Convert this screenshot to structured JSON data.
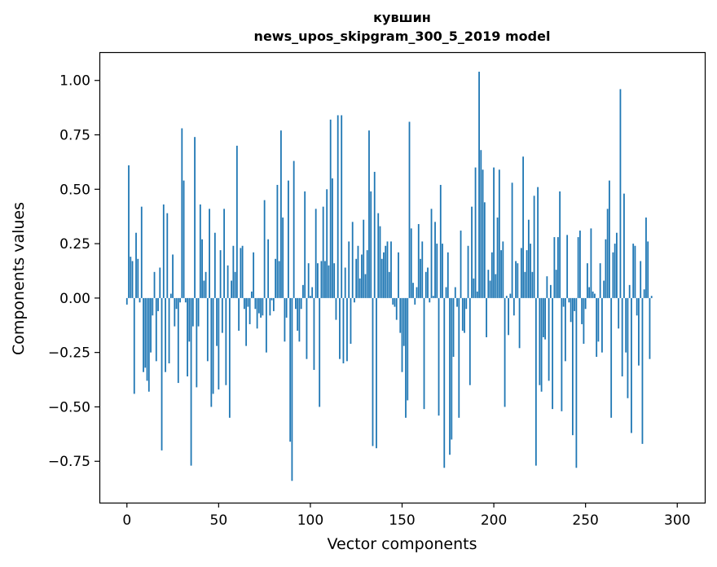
{
  "chart_data": {
    "type": "bar",
    "title_lines": [
      "кувшин",
      "news_upos_skipgram_300_5_2019 model"
    ],
    "xlabel": "Vector components",
    "ylabel": "Components values",
    "xlim": [
      -15,
      315
    ],
    "ylim": [
      -0.94,
      1.13
    ],
    "xticks": [
      0,
      50,
      100,
      150,
      200,
      250,
      300
    ],
    "yticks": [
      -0.75,
      -0.5,
      -0.25,
      0.0,
      0.25,
      0.5,
      0.75,
      1.0
    ],
    "ytick_labels": [
      "−0.75",
      "−0.50",
      "−0.25",
      "0.00",
      "0.25",
      "0.50",
      "0.75",
      "1.00"
    ],
    "bar_color": "#1f77b4",
    "grid": false,
    "series": [
      {
        "values": [
          -0.03,
          0.61,
          0.19,
          0.17,
          -0.44,
          0.3,
          0.18,
          -0.02,
          0.42,
          -0.34,
          -0.32,
          -0.38,
          -0.43,
          -0.25,
          -0.08,
          0.12,
          -0.29,
          -0.06,
          0.14,
          -0.7,
          0.43,
          -0.34,
          0.39,
          -0.3,
          0.02,
          0.2,
          -0.13,
          -0.05,
          -0.39,
          -0.02,
          0.78,
          0.54,
          -0.02,
          -0.36,
          -0.2,
          -0.77,
          -0.13,
          0.74,
          -0.41,
          -0.13,
          0.43,
          0.27,
          0.08,
          0.12,
          -0.29,
          0.41,
          -0.5,
          -0.44,
          0.3,
          -0.22,
          -0.42,
          0.22,
          -0.16,
          0.41,
          -0.4,
          0.15,
          -0.55,
          0.08,
          0.24,
          0.12,
          0.7,
          -0.15,
          0.23,
          0.24,
          -0.05,
          -0.22,
          -0.04,
          -0.12,
          0.03,
          0.21,
          -0.05,
          -0.14,
          -0.07,
          -0.09,
          -0.08,
          0.45,
          -0.25,
          0.27,
          -0.08,
          -0.01,
          -0.06,
          0.18,
          0.52,
          0.17,
          0.77,
          0.37,
          -0.2,
          -0.09,
          0.54,
          -0.66,
          -0.84,
          0.63,
          -0.05,
          -0.15,
          -0.2,
          -0.05,
          0.06,
          0.49,
          -0.28,
          0.16,
          0.01,
          0.05,
          -0.33,
          0.41,
          0.16,
          -0.5,
          0.17,
          0.42,
          0.17,
          0.5,
          0.15,
          0.82,
          0.55,
          0.16,
          -0.1,
          0.84,
          -0.28,
          0.84,
          -0.3,
          0.14,
          -0.29,
          0.26,
          -0.21,
          0.35,
          -0.02,
          0.18,
          0.24,
          0.09,
          0.2,
          0.36,
          0.11,
          0.22,
          0.77,
          0.49,
          -0.68,
          0.58,
          -0.69,
          0.39,
          0.33,
          0.18,
          0.21,
          0.24,
          0.26,
          0.12,
          0.26,
          -0.03,
          -0.04,
          -0.1,
          0.21,
          -0.16,
          -0.34,
          -0.22,
          -0.55,
          -0.47,
          0.81,
          0.32,
          0.07,
          -0.03,
          0.05,
          0.34,
          0.18,
          0.26,
          -0.51,
          0.12,
          0.14,
          -0.02,
          0.41,
          0.01,
          0.35,
          0.25,
          -0.54,
          0.52,
          0.25,
          -0.78,
          0.05,
          0.21,
          -0.72,
          -0.65,
          -0.27,
          0.05,
          -0.04,
          -0.55,
          0.31,
          -0.15,
          -0.16,
          -0.05,
          0.24,
          -0.4,
          0.42,
          0.09,
          0.6,
          0.03,
          1.04,
          0.68,
          0.59,
          0.44,
          -0.18,
          0.13,
          0.08,
          0.21,
          0.6,
          0.11,
          0.37,
          0.59,
          0.22,
          0.26,
          -0.5,
          0.01,
          -0.17,
          0.02,
          0.53,
          -0.08,
          0.17,
          0.16,
          -0.23,
          0.23,
          0.65,
          0.12,
          0.22,
          0.36,
          0.25,
          0.12,
          0.47,
          -0.77,
          0.51,
          -0.4,
          -0.43,
          -0.18,
          -0.19,
          0.1,
          -0.38,
          0.06,
          -0.51,
          0.28,
          0.13,
          0.28,
          0.49,
          -0.52,
          -0.04,
          -0.29,
          0.29,
          -0.02,
          -0.11,
          -0.63,
          -0.06,
          -0.78,
          0.28,
          0.31,
          -0.12,
          -0.21,
          -0.05,
          0.16,
          0.05,
          0.32,
          0.03,
          0.02,
          -0.27,
          -0.2,
          0.16,
          -0.25,
          0.08,
          0.27,
          0.41,
          0.54,
          -0.55,
          0.21,
          0.25,
          0.3,
          -0.14,
          0.96,
          -0.36,
          0.48,
          -0.25,
          -0.46,
          0.06,
          -0.62,
          0.25,
          0.24,
          -0.08,
          -0.31,
          0.17,
          -0.67,
          0.04,
          0.37,
          0.26,
          -0.28,
          0.01
        ]
      }
    ]
  }
}
